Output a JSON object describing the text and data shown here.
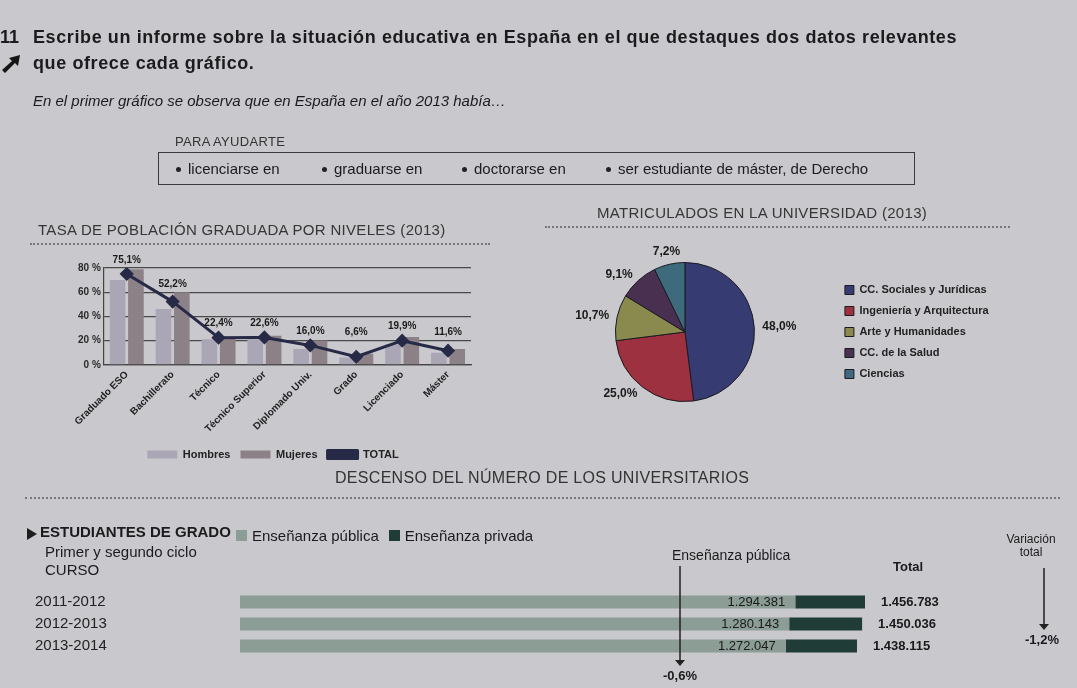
{
  "chart_data": [
    {
      "type": "other",
      "title": "Escribe un informe sobre la situación educativa en España en el que destaques dos datos relevantes que ofrece cada gráfico.",
      "subtitle": "En el primer gráfico se observa que en España en el año 2013 había…",
      "annotations": [
        "11",
        "PARA AYUDARTE",
        "licenciarse en",
        "graduarse en",
        "doctorarse en",
        "ser estudiante de máster, de Derecho"
      ]
    },
    {
      "type": "bar",
      "title": "TASA DE POBLACIÓN GRADUADA POR NIVELES (2013)",
      "categories": [
        "Graduado ESO",
        "Bachillerato",
        "Técnico",
        "Técnico Superior",
        "Diplomado Univ.",
        "Grado",
        "Licenciado",
        "Máster"
      ],
      "series": [
        {
          "name": "Hombres",
          "color": "#aaa6b6",
          "values": [
            70,
            46,
            21,
            21,
            13,
            6,
            17,
            10
          ]
        },
        {
          "name": "Mujeres",
          "color": "#8c8186",
          "values": [
            79,
            60,
            23,
            24,
            20,
            9,
            23,
            13
          ]
        },
        {
          "name": "TOTAL",
          "type": "line",
          "color": "#272a47",
          "values": [
            75.1,
            52.2,
            22.4,
            22.6,
            16.0,
            6.6,
            19.9,
            11.6
          ],
          "value_labels": [
            "75,1%",
            "52,2%",
            "22,4%",
            "22,6%",
            "16,0%",
            "6,6%",
            "19,9%",
            "11,6%"
          ]
        }
      ],
      "ylim": [
        0,
        80
      ],
      "yticks": [
        {
          "value": 0,
          "label": "0 %"
        },
        {
          "value": 20,
          "label": "20 %"
        },
        {
          "value": 40,
          "label": "40 %"
        },
        {
          "value": 60,
          "label": "60 %"
        },
        {
          "value": 80,
          "label": "80 %"
        }
      ],
      "grid": "y",
      "legend": "bottom",
      "marker": "diamond"
    },
    {
      "type": "pie",
      "title": "MATRICULADOS EN LA UNIVERSIDAD (2013)",
      "categories": [
        "CC. Sociales y Jurídicas",
        "Ingeniería y Arquitectura",
        "Arte y Humanidades",
        "CC. de la Salud",
        "Ciencias"
      ],
      "values": [
        48.0,
        25.0,
        10.7,
        9.1,
        7.2
      ],
      "colors": [
        "#363b72",
        "#9e3140",
        "#8b8a4e",
        "#4a3050",
        "#3d6a7c"
      ],
      "value_labels": [
        "48,0%",
        "25,0%",
        "10,7%",
        "9,1%",
        "7,2%"
      ],
      "legend": "right"
    },
    {
      "type": "bar",
      "orientation": "horizontal",
      "stacked": true,
      "title": "DESCENSO DEL NÚMERO DE LOS UNIVERSITARIOS",
      "subtitle": "ESTUDIANTES DE GRADO",
      "ylabel": "CURSO",
      "categories": [
        "2011-2012",
        "2012-2013",
        "2013-2014"
      ],
      "series": [
        {
          "name": "Enseñanza pública",
          "color": "#8b9d95",
          "values": [
            1294381,
            1280143,
            1272047
          ],
          "value_labels": [
            "1.294.381",
            "1.280.143",
            "1.272.047"
          ]
        },
        {
          "name": "Enseñanza privada",
          "color": "#1f3c36",
          "values": [
            162402,
            169893,
            166068
          ]
        }
      ],
      "totals": [
        "1.456.783",
        "1.450.036",
        "1.438.115"
      ],
      "tick_labels": "y",
      "legend": "top left",
      "annotations": [
        "Primer y segundo ciclo",
        "Enseñanza pública",
        "Total",
        "Variación total",
        "-0,6%",
        "-1,2%"
      ]
    }
  ]
}
